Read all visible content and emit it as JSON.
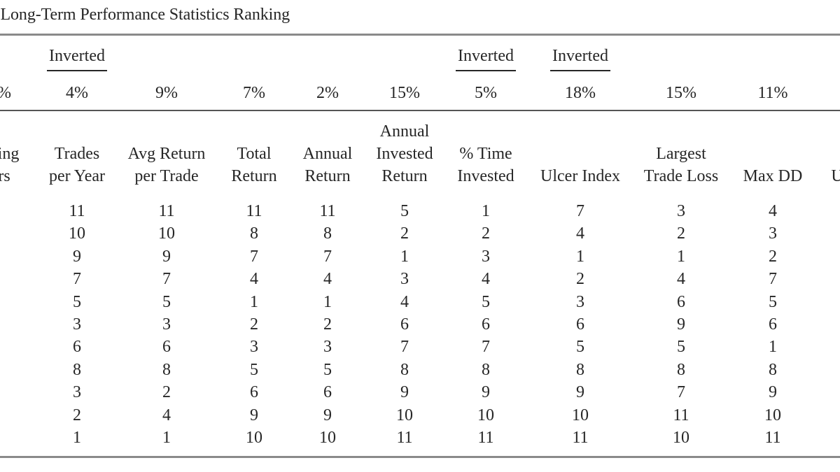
{
  "table": {
    "title": "e Long-Term Performance Statistics Ranking",
    "inverted_label": "Inverted",
    "columns": [
      {
        "id": "partial-left",
        "header": [
          "hing",
          "rs"
        ],
        "weight": "%",
        "inverted": false,
        "values": []
      },
      {
        "id": "trades-per-year",
        "header": [
          "Trades",
          "per Year"
        ],
        "weight": "4%",
        "inverted": true,
        "values": [
          "11",
          "10",
          "9",
          "7",
          "5",
          "3",
          "6",
          "8",
          "3",
          "2",
          "1"
        ]
      },
      {
        "id": "avg-return-per-trade",
        "header": [
          "Avg Return",
          "per Trade"
        ],
        "weight": "9%",
        "inverted": false,
        "values": [
          "11",
          "10",
          "9",
          "7",
          "5",
          "3",
          "6",
          "8",
          "2",
          "4",
          "1"
        ]
      },
      {
        "id": "total-return",
        "header": [
          "Total",
          "Return"
        ],
        "weight": "7%",
        "inverted": false,
        "values": [
          "11",
          "8",
          "7",
          "4",
          "1",
          "2",
          "3",
          "5",
          "6",
          "9",
          "10"
        ]
      },
      {
        "id": "annual-return",
        "header": [
          "Annual",
          "Return"
        ],
        "weight": "2%",
        "inverted": false,
        "values": [
          "11",
          "8",
          "7",
          "4",
          "1",
          "2",
          "3",
          "5",
          "6",
          "9",
          "10"
        ]
      },
      {
        "id": "annual-invested-return",
        "header": [
          "Annual",
          "Invested",
          "Return"
        ],
        "weight": "15%",
        "inverted": false,
        "values": [
          "5",
          "2",
          "1",
          "3",
          "4",
          "6",
          "7",
          "8",
          "9",
          "10",
          "11"
        ]
      },
      {
        "id": "pct-time-invested",
        "header": [
          "% Time",
          "Invested"
        ],
        "weight": "5%",
        "inverted": true,
        "values": [
          "1",
          "2",
          "3",
          "4",
          "5",
          "6",
          "7",
          "8",
          "9",
          "10",
          "11"
        ]
      },
      {
        "id": "ulcer-index",
        "header": [
          "Ulcer Index"
        ],
        "weight": "18%",
        "inverted": true,
        "values": [
          "7",
          "4",
          "1",
          "2",
          "3",
          "6",
          "5",
          "8",
          "9",
          "10",
          "11"
        ]
      },
      {
        "id": "largest-trade-loss",
        "header": [
          "Largest",
          "Trade Loss"
        ],
        "weight": "15%",
        "inverted": false,
        "values": [
          "3",
          "2",
          "1",
          "4",
          "6",
          "9",
          "5",
          "8",
          "7",
          "11",
          "10"
        ]
      },
      {
        "id": "max-dd",
        "header": [
          "Max DD"
        ],
        "weight": "11%",
        "inverted": false,
        "values": [
          "4",
          "3",
          "2",
          "7",
          "5",
          "6",
          "1",
          "8",
          "9",
          "10",
          "11"
        ]
      },
      {
        "id": "partial-right",
        "header": [
          "U"
        ],
        "weight": "",
        "inverted": false,
        "values": []
      }
    ]
  }
}
